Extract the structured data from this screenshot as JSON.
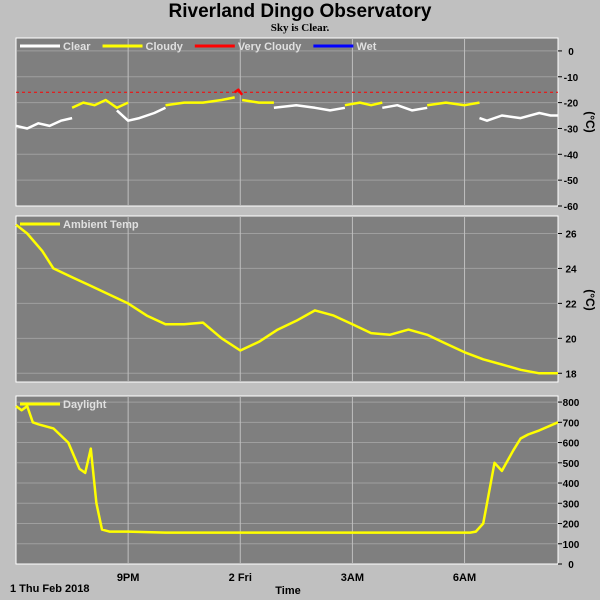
{
  "header": {
    "title": "Riverland Dingo Observatory",
    "subtitle": "Sky is Clear."
  },
  "colors": {
    "background": "#c0c0c0",
    "panel": "#7f7f7f",
    "grid": "#bfbfbf",
    "clear": "#ffffff",
    "cloudy": "#ffff00",
    "very_cloudy": "#ff0000",
    "wet": "#0000ff",
    "threshold": "#ff0000"
  },
  "chart_data": [
    {
      "type": "line",
      "name": "cloud",
      "legend": [
        {
          "label": "Clear",
          "color": "#ffffff"
        },
        {
          "label": "Cloudy",
          "color": "#ffff00"
        },
        {
          "label": "Very Cloudy",
          "color": "#ff0000"
        },
        {
          "label": "Wet",
          "color": "#0000ff"
        }
      ],
      "ylabel": "(°C)",
      "ylim": [
        -60,
        5
      ],
      "yticks": [
        0,
        -10,
        -20,
        -30,
        -40,
        -50,
        -60
      ],
      "threshold": -16,
      "series": [
        {
          "color": "#ffffff",
          "x": [
            18.0,
            18.3,
            18.6,
            18.9,
            19.2,
            19.5
          ],
          "y": [
            -29,
            -30,
            -28,
            -29,
            -27,
            -26
          ]
        },
        {
          "color": "#ffff00",
          "x": [
            19.5,
            19.8,
            20.1,
            20.4,
            20.7,
            21.0
          ],
          "y": [
            -22,
            -20,
            -21,
            -19,
            -22,
            -20
          ]
        },
        {
          "color": "#ffffff",
          "x": [
            20.7,
            21.0,
            21.3,
            21.7,
            22.0
          ],
          "y": [
            -23,
            -27,
            -26,
            -24,
            -22
          ]
        },
        {
          "color": "#ffff00",
          "x": [
            22.0,
            22.5,
            23.0,
            23.5,
            23.85
          ],
          "y": [
            -21,
            -20,
            -20,
            -19,
            -18
          ]
        },
        {
          "color": "#ff0000",
          "x": [
            23.85,
            23.95,
            24.05
          ],
          "y": [
            -16,
            -15,
            -17
          ]
        },
        {
          "color": "#ffff00",
          "x": [
            24.05,
            24.5,
            24.9
          ],
          "y": [
            -19,
            -20,
            -20
          ]
        },
        {
          "color": "#ffffff",
          "x": [
            24.9,
            25.5,
            26.0,
            26.4,
            26.8
          ],
          "y": [
            -22,
            -21,
            -22,
            -23,
            -22
          ]
        },
        {
          "color": "#ffff00",
          "x": [
            26.8,
            27.2,
            27.5,
            27.8
          ],
          "y": [
            -21,
            -20,
            -21,
            -20
          ]
        },
        {
          "color": "#ffffff",
          "x": [
            27.8,
            28.2,
            28.6,
            29.0
          ],
          "y": [
            -22,
            -21,
            -23,
            -22
          ]
        },
        {
          "color": "#ffff00",
          "x": [
            29.0,
            29.5,
            30.0,
            30.4
          ],
          "y": [
            -21,
            -20,
            -21,
            -20
          ]
        },
        {
          "color": "#ffffff",
          "x": [
            30.4,
            30.6,
            31.0,
            31.5,
            32.0,
            32.3,
            32.5
          ],
          "y": [
            -26,
            -27,
            -25,
            -26,
            -24,
            -25,
            -25
          ]
        }
      ]
    },
    {
      "type": "line",
      "name": "ambient",
      "legend": [
        {
          "label": "Ambient Temp",
          "color": "#ffff00"
        }
      ],
      "ylim": [
        17.5,
        27
      ],
      "yticks": [
        26,
        24,
        22,
        20,
        18
      ],
      "series": [
        {
          "color": "#ffff00",
          "x": [
            18.0,
            18.3,
            18.7,
            19.0,
            19.5,
            20.0,
            20.5,
            21.0,
            21.5,
            22.0,
            22.5,
            23.0,
            23.5,
            24.0,
            24.5,
            25.0,
            25.5,
            26.0,
            26.5,
            27.0,
            27.5,
            28.0,
            28.5,
            29.0,
            29.5,
            30.0,
            30.5,
            31.0,
            31.5,
            32.0,
            32.5
          ],
          "y": [
            26.5,
            26.0,
            25.0,
            24.0,
            23.5,
            23.0,
            22.5,
            22.0,
            21.3,
            20.8,
            20.8,
            20.9,
            20.0,
            19.3,
            19.8,
            20.5,
            21.0,
            21.6,
            21.3,
            20.8,
            20.3,
            20.2,
            20.5,
            20.2,
            19.7,
            19.2,
            18.8,
            18.5,
            18.2,
            18.0,
            18.0
          ]
        }
      ]
    },
    {
      "type": "line",
      "name": "daylight",
      "legend": [
        {
          "label": "Daylight",
          "color": "#ffff00"
        }
      ],
      "ylim": [
        0,
        830
      ],
      "yticks": [
        800,
        700,
        600,
        500,
        400,
        300,
        200,
        100,
        0
      ],
      "series": [
        {
          "color": "#ffff00",
          "x": [
            18.0,
            18.15,
            18.3,
            18.45,
            18.6,
            19.0,
            19.4,
            19.7,
            19.85,
            20.0,
            20.15,
            20.3,
            20.5,
            21.0,
            22.0,
            24.0,
            26.0,
            28.0,
            30.0,
            30.15,
            30.3,
            30.5,
            30.6,
            30.8,
            31.0,
            31.3,
            31.5,
            31.7,
            32.0,
            32.5
          ],
          "y": [
            780,
            760,
            780,
            700,
            690,
            670,
            600,
            470,
            450,
            570,
            300,
            170,
            160,
            160,
            155,
            155,
            155,
            155,
            155,
            155,
            160,
            200,
            300,
            500,
            460,
            560,
            620,
            640,
            660,
            700
          ]
        }
      ]
    }
  ],
  "xaxis": {
    "start_label": "1 Thu Feb 2018",
    "title": "Time",
    "xlim": [
      18.0,
      32.5
    ],
    "ticks": [
      {
        "x": 21,
        "label": "9PM"
      },
      {
        "x": 24,
        "label": "2 Fri"
      },
      {
        "x": 27,
        "label": "3AM"
      },
      {
        "x": 30,
        "label": "6AM"
      }
    ]
  }
}
